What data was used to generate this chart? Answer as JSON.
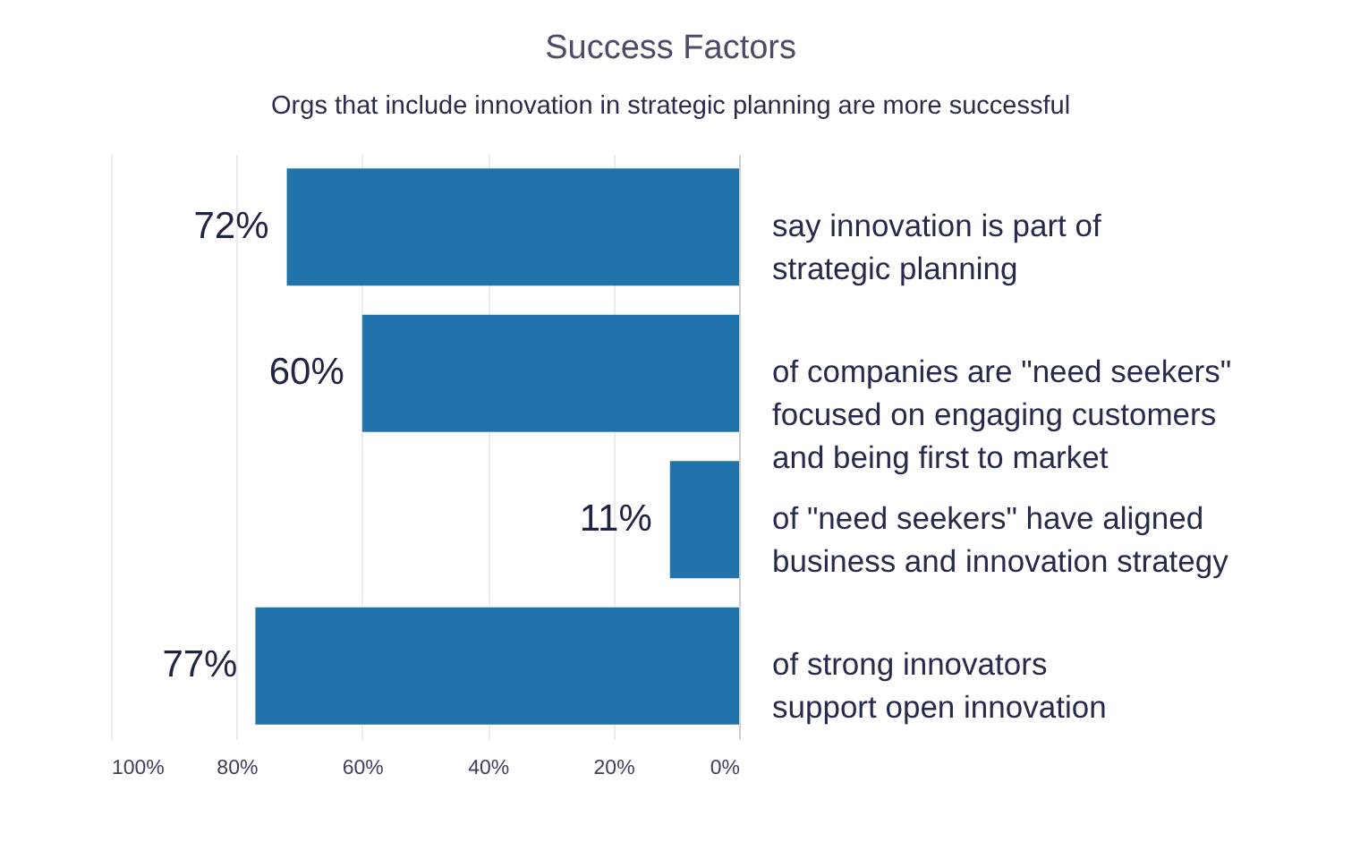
{
  "chart_data": {
    "type": "bar",
    "orientation": "horizontal",
    "title": "Success Factors",
    "subtitle": "Orgs that include innovation in strategic planning are more successful",
    "categories": [
      "say innovation is part of\nstrategic planning",
      "of companies are \"need seekers\"\nfocused on engaging customers\nand being first to market",
      "of \"need seekers\" have aligned\nbusiness and innovation strategy",
      "of strong innovators\nsupport open innovation"
    ],
    "values": [
      72,
      60,
      11,
      77
    ],
    "color": "#2174ab",
    "value_labels": [
      "72%",
      "60%",
      "11%",
      "77%"
    ],
    "xlim": [
      100,
      0
    ],
    "xticks": [
      {
        "value": 100,
        "label": "100%"
      },
      {
        "value": 80,
        "label": "80%"
      },
      {
        "value": 60,
        "label": "60%"
      },
      {
        "value": 40,
        "label": "40%"
      },
      {
        "value": 20,
        "label": "20%"
      },
      {
        "value": 0,
        "label": "0%"
      }
    ],
    "grid": "x"
  }
}
